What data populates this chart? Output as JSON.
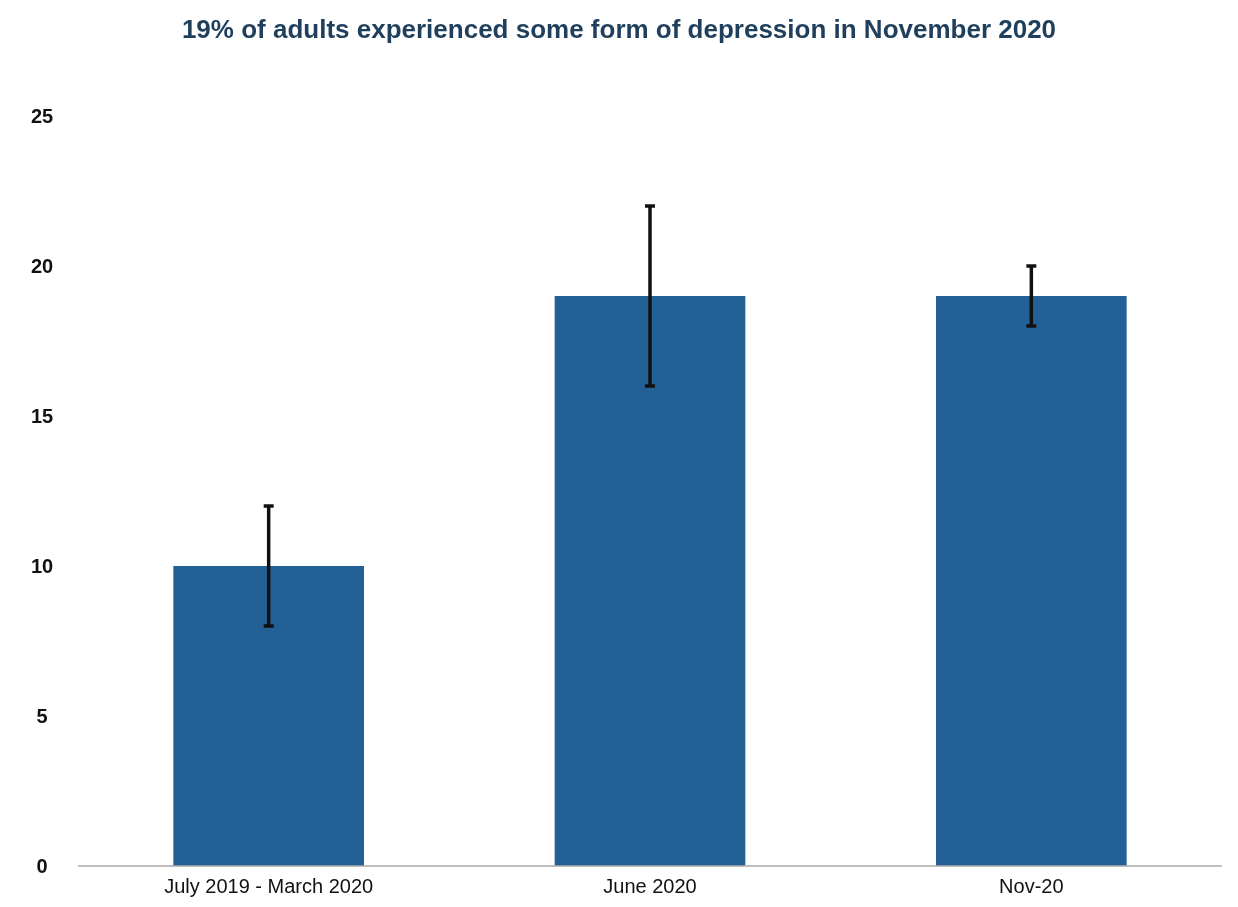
{
  "chart_data": {
    "type": "bar",
    "title": "19% of adults experienced some form of depression in November 2020",
    "categories": [
      "July 2019 - March 2020",
      "June 2020",
      "Nov-20"
    ],
    "values": [
      10,
      19,
      19
    ],
    "errors": [
      [
        8,
        12
      ],
      [
        16,
        22
      ],
      [
        18,
        20
      ]
    ],
    "color": "#226096",
    "ylim": [
      0,
      25
    ],
    "yticks": [
      0,
      5,
      10,
      15,
      20,
      25
    ],
    "grid": false
  }
}
